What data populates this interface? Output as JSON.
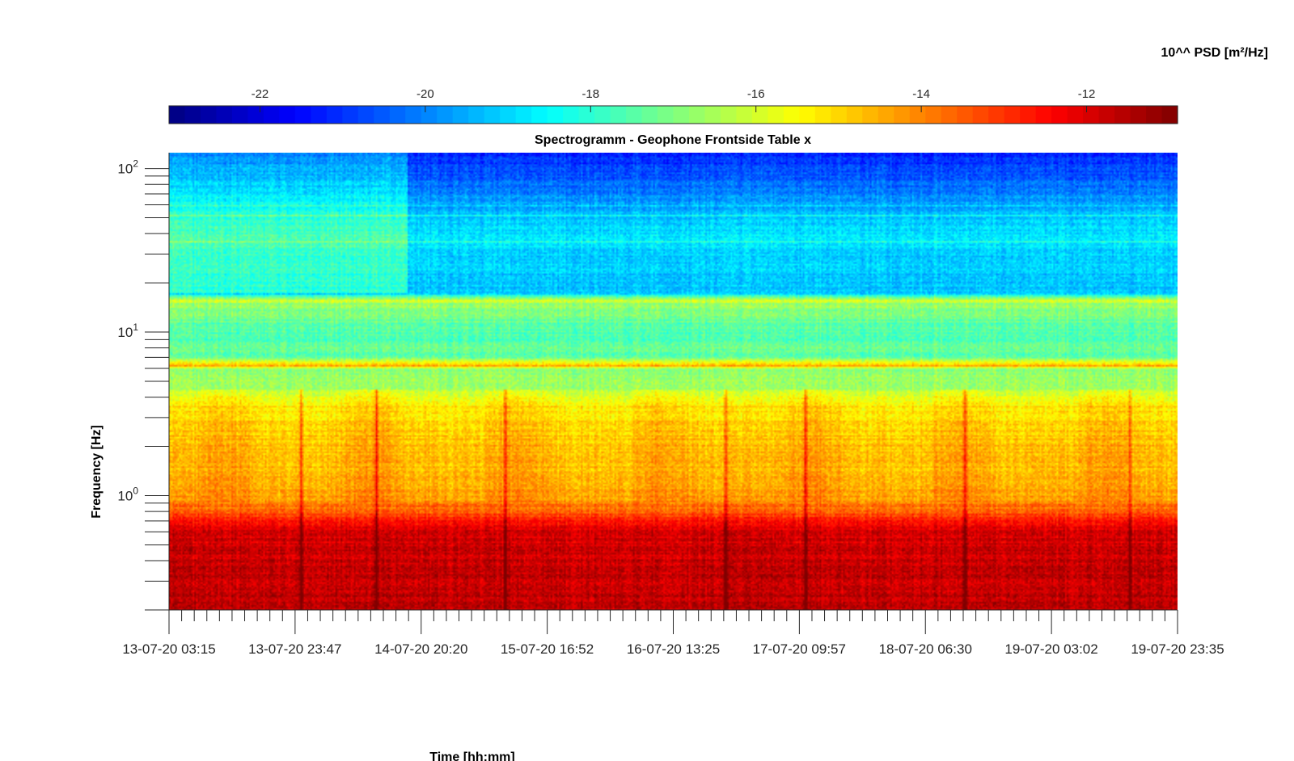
{
  "chart_data": {
    "type": "heatmap",
    "title": "Spectrogramm - Geophone Frontside Table x",
    "xlabel": "Time [hh:mm]",
    "ylabel": "Frequency [Hz]",
    "x_scale": "time",
    "y_scale": "log",
    "xlim": [
      "13-07-20 03:15",
      "19-07-20 23:35"
    ],
    "ylim": [
      0.2,
      125
    ],
    "x_ticks": [
      "13-07-20 03:15",
      "13-07-20 23:47",
      "14-07-20 20:20",
      "15-07-20 16:52",
      "16-07-20 13:25",
      "17-07-20 09:57",
      "18-07-20 06:30",
      "19-07-20 03:02",
      "19-07-20 23:35"
    ],
    "y_ticks": [
      {
        "base": "10",
        "exp": "0",
        "value": 1
      },
      {
        "base": "10",
        "exp": "1",
        "value": 10
      },
      {
        "base": "10",
        "exp": "2",
        "value": 100
      }
    ],
    "colorbar": {
      "label": "10^^ PSD [m²/Hz]",
      "range": [
        -23.1,
        -10.9
      ],
      "ticks": [
        -22,
        -20,
        -18,
        -16,
        -14,
        -12
      ],
      "tick_labels": [
        "-22",
        "-20",
        "-18",
        "-16",
        "-14",
        "-12"
      ],
      "colormap": "jet",
      "levels": 64,
      "placement": "top"
    },
    "psd_profile": {
      "frequency_hz": [
        0.2,
        0.6,
        0.75,
        1.0,
        2.0,
        3.5,
        4.5,
        6.0,
        6.3,
        7.0,
        10.0,
        16.0,
        17.5,
        40.0,
        125.0
      ],
      "log10_psd": [
        -11.6,
        -11.9,
        -13.2,
        -14.5,
        -14.8,
        -15.2,
        -16.5,
        -16.8,
        -14.8,
        -17.3,
        -17.6,
        -16.6,
        -19.3,
        -18.8,
        -21.2
      ]
    },
    "tonal_lines_hz": [
      6.2,
      15.5,
      36,
      52,
      60
    ],
    "early_period_end": "14-07-20 18:00",
    "transient_events": [
      "14-07-20 00:40",
      "14-07-20 13:00",
      "15-07-20 10:00",
      "16-07-20 22:00",
      "17-07-20 11:00",
      "18-07-20 13:00",
      "19-07-20 16:00"
    ]
  }
}
